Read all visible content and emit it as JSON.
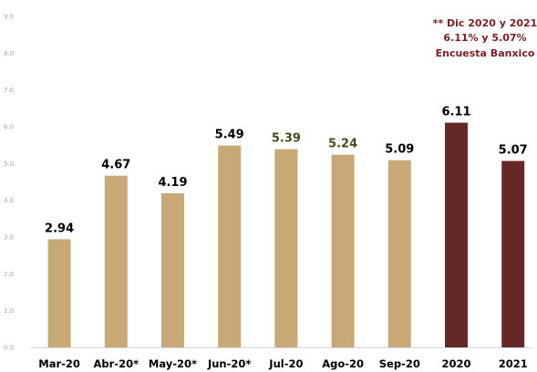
{
  "chart_data": {
    "type": "bar",
    "categories": [
      "Mar-20",
      "Abr-20*",
      "May-20*",
      "Jun-20*",
      "Jul-20",
      "Ago-20",
      "Sep-20",
      "2020",
      "2021"
    ],
    "values": [
      2.94,
      4.67,
      4.19,
      5.49,
      5.39,
      5.24,
      5.09,
      6.11,
      5.07
    ],
    "data_labels": [
      "2.94",
      "4.67",
      "4.19",
      "5.49",
      "5.39",
      "5.24",
      "5.09",
      "6.11",
      "5.07"
    ],
    "ylim": [
      0,
      9
    ],
    "y_ticks": [
      "0.0",
      "1.0",
      "2.0",
      "3.0",
      "4.0",
      "5.0",
      "6.0",
      "7.0",
      "8.0",
      "9.0"
    ],
    "grid": false,
    "bar_colors": [
      "#c9a877",
      "#c9a877",
      "#c9a877",
      "#c9a877",
      "#c9a877",
      "#c9a877",
      "#c9a877",
      "#662727",
      "#662727"
    ],
    "data_label_colors": [
      "#000000",
      "#000000",
      "#000000",
      "#000000",
      "#4a4a1a",
      "#4a4a1a",
      "#000000",
      "#000000",
      "#000000"
    ],
    "annotation": {
      "lines": [
        "** Dic 2020 y 2021",
        "6.11% y 5.07%",
        "Encuesta Banxico"
      ],
      "color": "#7b1f23"
    },
    "axis_color": "#d9d9d9",
    "tick_color": "#a6a6a6"
  }
}
